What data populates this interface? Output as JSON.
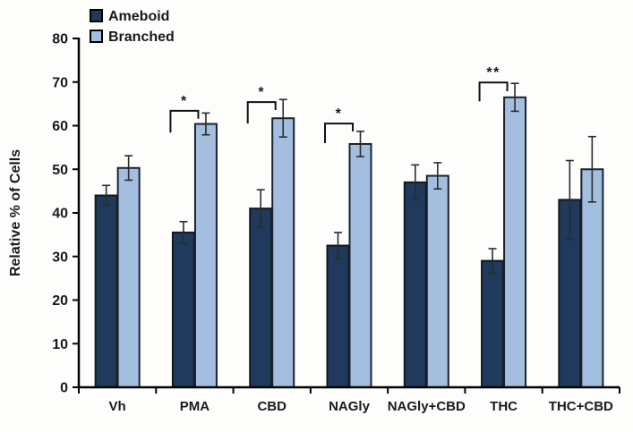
{
  "figure": {
    "background": "#fdfdfc"
  },
  "chart_data": {
    "type": "bar",
    "title": "",
    "ylabel": "Relative % of Cells",
    "xlabel": "",
    "ylim": [
      0,
      80
    ],
    "ytick_step": 10,
    "ytick_labels": [
      "0",
      "10",
      "20",
      "30",
      "40",
      "50",
      "60",
      "70",
      "80"
    ],
    "grid": false,
    "legend_position": "top-left",
    "categories": [
      "Vh",
      "PMA",
      "CBD",
      "NAGly",
      "NAGly+CBD",
      "THC",
      "THC+CBD"
    ],
    "series": [
      {
        "name": "Ameboid",
        "fill": "#1f3a5c",
        "border": "#14181e",
        "values": [
          44,
          35.5,
          41,
          32.5,
          47,
          29,
          43
        ],
        "errors": [
          2.3,
          2.5,
          4.3,
          3,
          4,
          2.8,
          9
        ]
      },
      {
        "name": "Branched",
        "fill": "#a3bede",
        "border": "#1b2230",
        "values": [
          50.3,
          60.4,
          61.7,
          55.8,
          48.5,
          66.5,
          50
        ],
        "errors": [
          2.8,
          2.5,
          4.3,
          2.9,
          3,
          3.2,
          7.5
        ]
      }
    ],
    "significance": [
      {
        "category": "PMA",
        "label": "*",
        "bracket_top": 63.4,
        "left_drop": 58.4,
        "right_drop": 61.6
      },
      {
        "category": "CBD",
        "label": "*",
        "bracket_top": 65.4,
        "left_drop": 60.5,
        "right_drop": 63.6
      },
      {
        "category": "NAGly",
        "label": "*",
        "bracket_top": 60.5,
        "left_drop": 56.0,
        "right_drop": 58.7
      },
      {
        "category": "THC",
        "label": "**",
        "bracket_top": 69.9,
        "left_drop": 65.6,
        "right_drop": 67.9
      }
    ],
    "error_bar_color": "#2b2b2b",
    "axis_color": "#000000",
    "text_color": "#1a1a1a"
  }
}
